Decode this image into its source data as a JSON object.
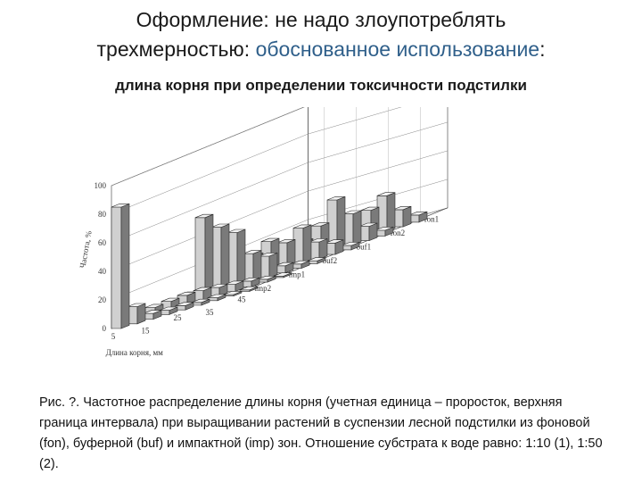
{
  "slide": {
    "title_line1": "Оформление: не надо злоупотреблять",
    "title_line2_plain": "трехмерностью: ",
    "title_line2_accent": "обоснованное использование",
    "title_line2_end": ":",
    "subtitle": "длина корня при определении токсичности подстилки",
    "caption": "Рис. ?. Частотное распределение длины корня (учетная единица – проросток, верхняя граница интервала) при выращивании растений в суспензии лесной подстилки из фоновой (fon), буферной (buf) и импактной (imp) зон. Отношение субстрата к воде равно: 1:10 (1), 1:50 (2)."
  },
  "chart_data": {
    "type": "bar",
    "style": "3d",
    "ylabel": "Частота, %",
    "xlabel": "Длина корня, мм",
    "ylim": [
      0,
      100
    ],
    "yticks": [
      0,
      20,
      40,
      60,
      80,
      100
    ],
    "x_tick_labels": [
      "5",
      "15",
      "25",
      "35",
      "45"
    ],
    "categories": [
      "5",
      "10",
      "15",
      "20",
      "25",
      "30",
      "35",
      "40",
      "45"
    ],
    "series": [
      {
        "name": "imp2",
        "values": [
          85,
          12,
          4,
          3,
          3,
          2,
          2,
          1,
          1
        ]
      },
      {
        "name": "imp1",
        "values": [
          5,
          6,
          7,
          7,
          6,
          5,
          4,
          2,
          1
        ]
      },
      {
        "name": "buf2",
        "values": [
          4,
          55,
          45,
          38,
          20,
          15,
          5,
          3,
          2
        ]
      },
      {
        "name": "buf1",
        "values": [
          2,
          16,
          15,
          22,
          18,
          25,
          12,
          8,
          3
        ]
      },
      {
        "name": "fon2",
        "values": [
          1,
          3,
          8,
          12,
          20,
          35,
          22,
          10,
          4
        ]
      },
      {
        "name": "fon1",
        "values": [
          1,
          2,
          4,
          6,
          8,
          18,
          25,
          12,
          5
        ]
      }
    ],
    "colors": {
      "front": "#d0d0d0",
      "top": "#f2f2f2",
      "side": "#7a7a7a",
      "edge": "#2a2a2a"
    }
  }
}
